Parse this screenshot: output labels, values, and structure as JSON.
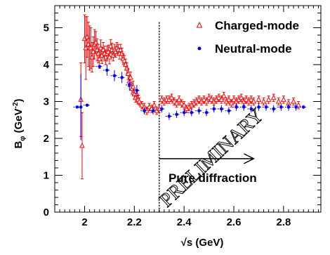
{
  "chart_data": {
    "type": "scatter",
    "xlabel": "√s (GeV)",
    "ylabel": "B_φ (GeV⁻²)",
    "ylabel_main": "B",
    "ylabel_sub": "φ",
    "ylabel_unit": " (GeV",
    "ylabel_exp": "-2",
    "ylabel_close": ")",
    "xlim": [
      1.88,
      2.95
    ],
    "ylim": [
      0,
      5.6
    ],
    "xticks": [
      2,
      2.2,
      2.4,
      2.6,
      2.8
    ],
    "xtick_labels": [
      "2",
      "2.2",
      "2.4",
      "2.6",
      "2.8"
    ],
    "yticks": [
      0,
      1,
      2,
      3,
      4,
      5
    ],
    "ytick_labels": [
      "0",
      "1",
      "2",
      "3",
      "4",
      "5"
    ],
    "legend_position": "top-right",
    "colors": {
      "charged": "#ff0000",
      "neutral": "#0000ff",
      "axis": "#000000"
    },
    "series": [
      {
        "name": "Charged-mode",
        "marker": "open-triangle",
        "points": [
          [
            1.985,
            3.05,
            1.0
          ],
          [
            1.99,
            1.8,
            0.9
          ],
          [
            2.0,
            4.7,
            0.65
          ],
          [
            2.005,
            4.45,
            0.85
          ],
          [
            2.01,
            4.75,
            0.55
          ],
          [
            2.015,
            4.55,
            0.6
          ],
          [
            2.02,
            4.45,
            0.6
          ],
          [
            2.025,
            4.45,
            0.55
          ],
          [
            2.03,
            4.2,
            0.4
          ],
          [
            2.035,
            4.35,
            0.4
          ],
          [
            2.04,
            4.55,
            0.4
          ],
          [
            2.045,
            4.6,
            0.3
          ],
          [
            2.05,
            4.4,
            0.3
          ],
          [
            2.055,
            4.3,
            0.25
          ],
          [
            2.06,
            4.15,
            0.25
          ],
          [
            2.065,
            4.45,
            0.22
          ],
          [
            2.07,
            4.25,
            0.22
          ],
          [
            2.075,
            4.4,
            0.2
          ],
          [
            2.08,
            4.3,
            0.2
          ],
          [
            2.085,
            4.2,
            0.2
          ],
          [
            2.09,
            4.3,
            0.2
          ],
          [
            2.095,
            4.35,
            0.18
          ],
          [
            2.1,
            4.2,
            0.18
          ],
          [
            2.105,
            4.5,
            0.18
          ],
          [
            2.11,
            4.4,
            0.18
          ],
          [
            2.115,
            4.25,
            0.15
          ],
          [
            2.12,
            4.4,
            0.15
          ],
          [
            2.125,
            4.35,
            0.15
          ],
          [
            2.13,
            4.45,
            0.15
          ],
          [
            2.135,
            4.4,
            0.15
          ],
          [
            2.14,
            4.3,
            0.15
          ],
          [
            2.145,
            4.4,
            0.15
          ],
          [
            2.15,
            4.3,
            0.15
          ],
          [
            2.155,
            4.15,
            0.15
          ],
          [
            2.16,
            4.1,
            0.15
          ],
          [
            2.165,
            4.0,
            0.15
          ],
          [
            2.17,
            3.9,
            0.15
          ],
          [
            2.175,
            3.75,
            0.15
          ],
          [
            2.18,
            3.55,
            0.15
          ],
          [
            2.185,
            3.65,
            0.15
          ],
          [
            2.19,
            3.35,
            0.15
          ],
          [
            2.195,
            3.4,
            0.15
          ],
          [
            2.2,
            3.2,
            0.12
          ],
          [
            2.205,
            3.1,
            0.12
          ],
          [
            2.21,
            3.2,
            0.12
          ],
          [
            2.215,
            3.05,
            0.12
          ],
          [
            2.22,
            3.0,
            0.1
          ],
          [
            2.23,
            2.9,
            0.1
          ],
          [
            2.24,
            2.85,
            0.1
          ],
          [
            2.25,
            2.75,
            0.1
          ],
          [
            2.26,
            2.85,
            0.1
          ],
          [
            2.27,
            2.8,
            0.1
          ],
          [
            2.28,
            2.9,
            0.1
          ],
          [
            2.29,
            2.75,
            0.1
          ],
          [
            2.3,
            2.8,
            0.1
          ],
          [
            2.31,
            3.05,
            0.1
          ],
          [
            2.32,
            3.0,
            0.1
          ],
          [
            2.33,
            3.05,
            0.1
          ],
          [
            2.34,
            3.05,
            0.1
          ],
          [
            2.35,
            3.1,
            0.1
          ],
          [
            2.36,
            3.0,
            0.1
          ],
          [
            2.37,
            2.95,
            0.1
          ],
          [
            2.38,
            3.05,
            0.1
          ],
          [
            2.39,
            2.95,
            0.1
          ],
          [
            2.4,
            2.9,
            0.1
          ],
          [
            2.41,
            2.8,
            0.1
          ],
          [
            2.42,
            2.85,
            0.1
          ],
          [
            2.43,
            2.9,
            0.1
          ],
          [
            2.44,
            2.95,
            0.1
          ],
          [
            2.45,
            3.0,
            0.1
          ],
          [
            2.46,
            3.05,
            0.1
          ],
          [
            2.47,
            3.0,
            0.1
          ],
          [
            2.48,
            3.05,
            0.1
          ],
          [
            2.49,
            3.0,
            0.1
          ],
          [
            2.5,
            3.1,
            0.1
          ],
          [
            2.51,
            3.05,
            0.1
          ],
          [
            2.52,
            3.0,
            0.1
          ],
          [
            2.53,
            3.05,
            0.1
          ],
          [
            2.54,
            3.1,
            0.1
          ],
          [
            2.55,
            3.05,
            0.1
          ],
          [
            2.56,
            3.15,
            0.1
          ],
          [
            2.57,
            3.0,
            0.1
          ],
          [
            2.58,
            3.05,
            0.1
          ],
          [
            2.59,
            2.95,
            0.1
          ],
          [
            2.6,
            3.05,
            0.1
          ],
          [
            2.61,
            3.0,
            0.1
          ],
          [
            2.62,
            3.05,
            0.1
          ],
          [
            2.63,
            3.1,
            0.1
          ],
          [
            2.64,
            3.0,
            0.1
          ],
          [
            2.65,
            3.05,
            0.1
          ],
          [
            2.66,
            3.0,
            0.1
          ],
          [
            2.67,
            3.05,
            0.1
          ],
          [
            2.68,
            3.0,
            0.1
          ],
          [
            2.7,
            3.05,
            0.1
          ],
          [
            2.72,
            3.0,
            0.1
          ],
          [
            2.74,
            3.05,
            0.1
          ],
          [
            2.76,
            3.1,
            0.1
          ],
          [
            2.78,
            3.0,
            0.1
          ],
          [
            2.8,
            3.05,
            0.1
          ],
          [
            2.82,
            2.95,
            0.1
          ],
          [
            2.84,
            3.0,
            0.1
          ],
          [
            2.86,
            2.9,
            0.1
          ]
        ]
      },
      {
        "name": "Neutral-mode",
        "marker": "filled-circle",
        "points": [
          [
            1.97,
            2.85,
            0.0,
            0.015
          ],
          [
            1.985,
            2.85,
            0.9,
            0.0
          ],
          [
            2.01,
            2.9,
            0.0,
            0.015
          ],
          [
            2.06,
            3.95,
            0.0,
            0.015
          ],
          [
            2.09,
            3.85,
            0.15,
            0.015
          ],
          [
            2.12,
            3.7,
            0.15,
            0.015
          ],
          [
            2.15,
            3.65,
            0.15,
            0.015
          ],
          [
            2.18,
            3.45,
            0.15,
            0.015
          ],
          [
            2.21,
            3.3,
            0.15,
            0.015
          ],
          [
            2.24,
            2.75,
            0.1,
            0.015
          ],
          [
            2.275,
            2.75,
            0.1,
            0.015
          ],
          [
            2.31,
            2.8,
            0.1,
            0.015
          ],
          [
            2.34,
            2.6,
            0.1,
            0.015
          ],
          [
            2.37,
            2.65,
            0.1,
            0.015
          ],
          [
            2.4,
            2.7,
            0.1,
            0.015
          ],
          [
            2.43,
            2.7,
            0.1,
            0.015
          ],
          [
            2.46,
            2.75,
            0.1,
            0.015
          ],
          [
            2.49,
            2.7,
            0.1,
            0.015
          ],
          [
            2.52,
            2.8,
            0.1,
            0.015
          ],
          [
            2.55,
            2.8,
            0.1,
            0.015
          ],
          [
            2.58,
            2.75,
            0.1,
            0.015
          ],
          [
            2.61,
            2.85,
            0.1,
            0.015
          ],
          [
            2.64,
            2.85,
            0.1,
            0.015
          ],
          [
            2.67,
            2.8,
            0.1,
            0.015
          ],
          [
            2.7,
            2.85,
            0.1,
            0.015
          ],
          [
            2.73,
            2.85,
            0.1,
            0.015
          ],
          [
            2.76,
            2.8,
            0.1,
            0.015
          ],
          [
            2.79,
            2.85,
            0.1,
            0.015
          ],
          [
            2.82,
            2.85,
            0.1,
            0.015
          ],
          [
            2.85,
            2.85,
            0.1,
            0.015
          ],
          [
            2.88,
            2.85,
            0.05,
            0.015
          ]
        ]
      }
    ],
    "annotations": {
      "threshold_x": 2.3,
      "arrow_y": 1.45,
      "arrow_x_end": 2.68,
      "arrow_label": "Pure diffraction",
      "stamp": "PRELIMINARY"
    }
  }
}
